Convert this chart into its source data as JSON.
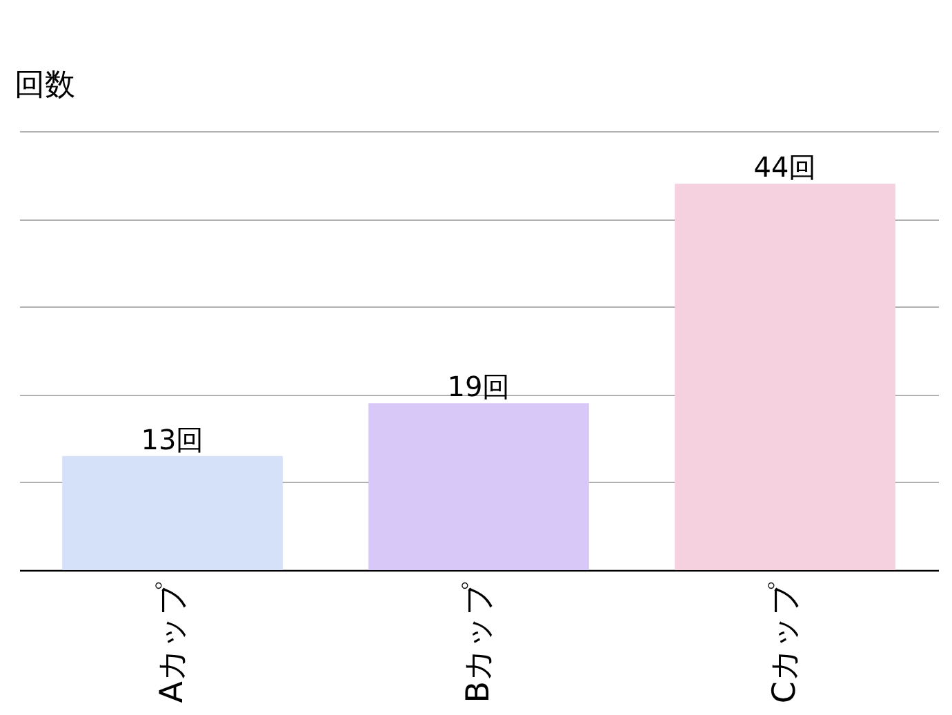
{
  "chart_data": {
    "type": "bar",
    "ylabel": "回数",
    "categories": [
      "Aカップ",
      "Bカップ",
      "Cカップ"
    ],
    "values": [
      13,
      19,
      44
    ],
    "colors": [
      "#d4e1f8",
      "#d8c8f8",
      "#f5d0de"
    ],
    "value_labels": [
      "13回",
      "19回",
      "44回"
    ],
    "ylim": [
      0,
      50
    ],
    "yticks": [
      {
        "value": 0,
        "label": null
      },
      {
        "value": 10,
        "label": null
      },
      {
        "value": 20,
        "label": null
      },
      {
        "value": 30,
        "label": null
      },
      {
        "value": 40,
        "label": null
      },
      {
        "value": 50,
        "label": null
      }
    ],
    "grid": "y",
    "tick_labels": "x"
  }
}
